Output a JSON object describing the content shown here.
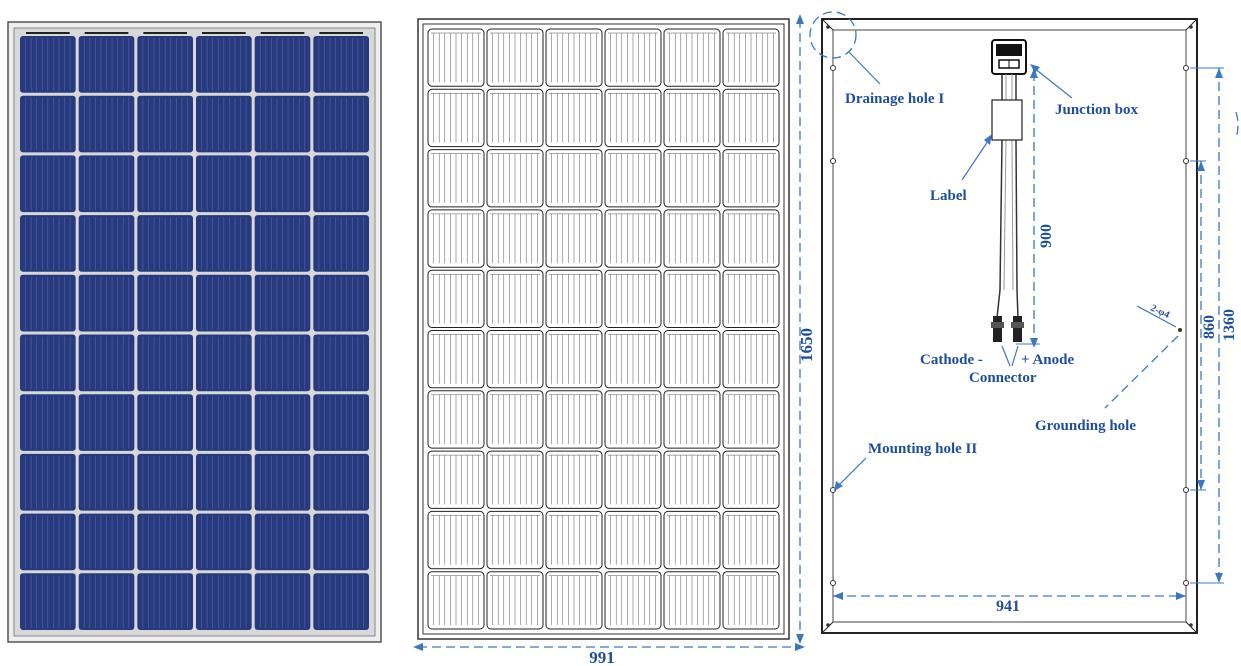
{
  "colors": {
    "cell_dark": "#283a7e",
    "cell_grid": "#4f64ad",
    "label_text": "#1f4f9c",
    "dim_line": "#3a78c4",
    "frame": "#222222"
  },
  "panel": {
    "columns": 6,
    "rows": 10
  },
  "dimensions": {
    "front_height": "1650",
    "front_width": "991",
    "back_width": "941",
    "mount_spacing": "860",
    "overall_spacing": "1360",
    "cable_length": "900",
    "grounding_hole_size": "2-φ4"
  },
  "labels": {
    "drainage_hole": "Drainage hole I",
    "junction_box": "Junction box",
    "label": "Label",
    "cathode": "Cathode -",
    "anode": "+ Anode",
    "connector": "Connector",
    "grounding_hole": "Grounding hole",
    "mounting_hole": "Mounting hole II"
  }
}
